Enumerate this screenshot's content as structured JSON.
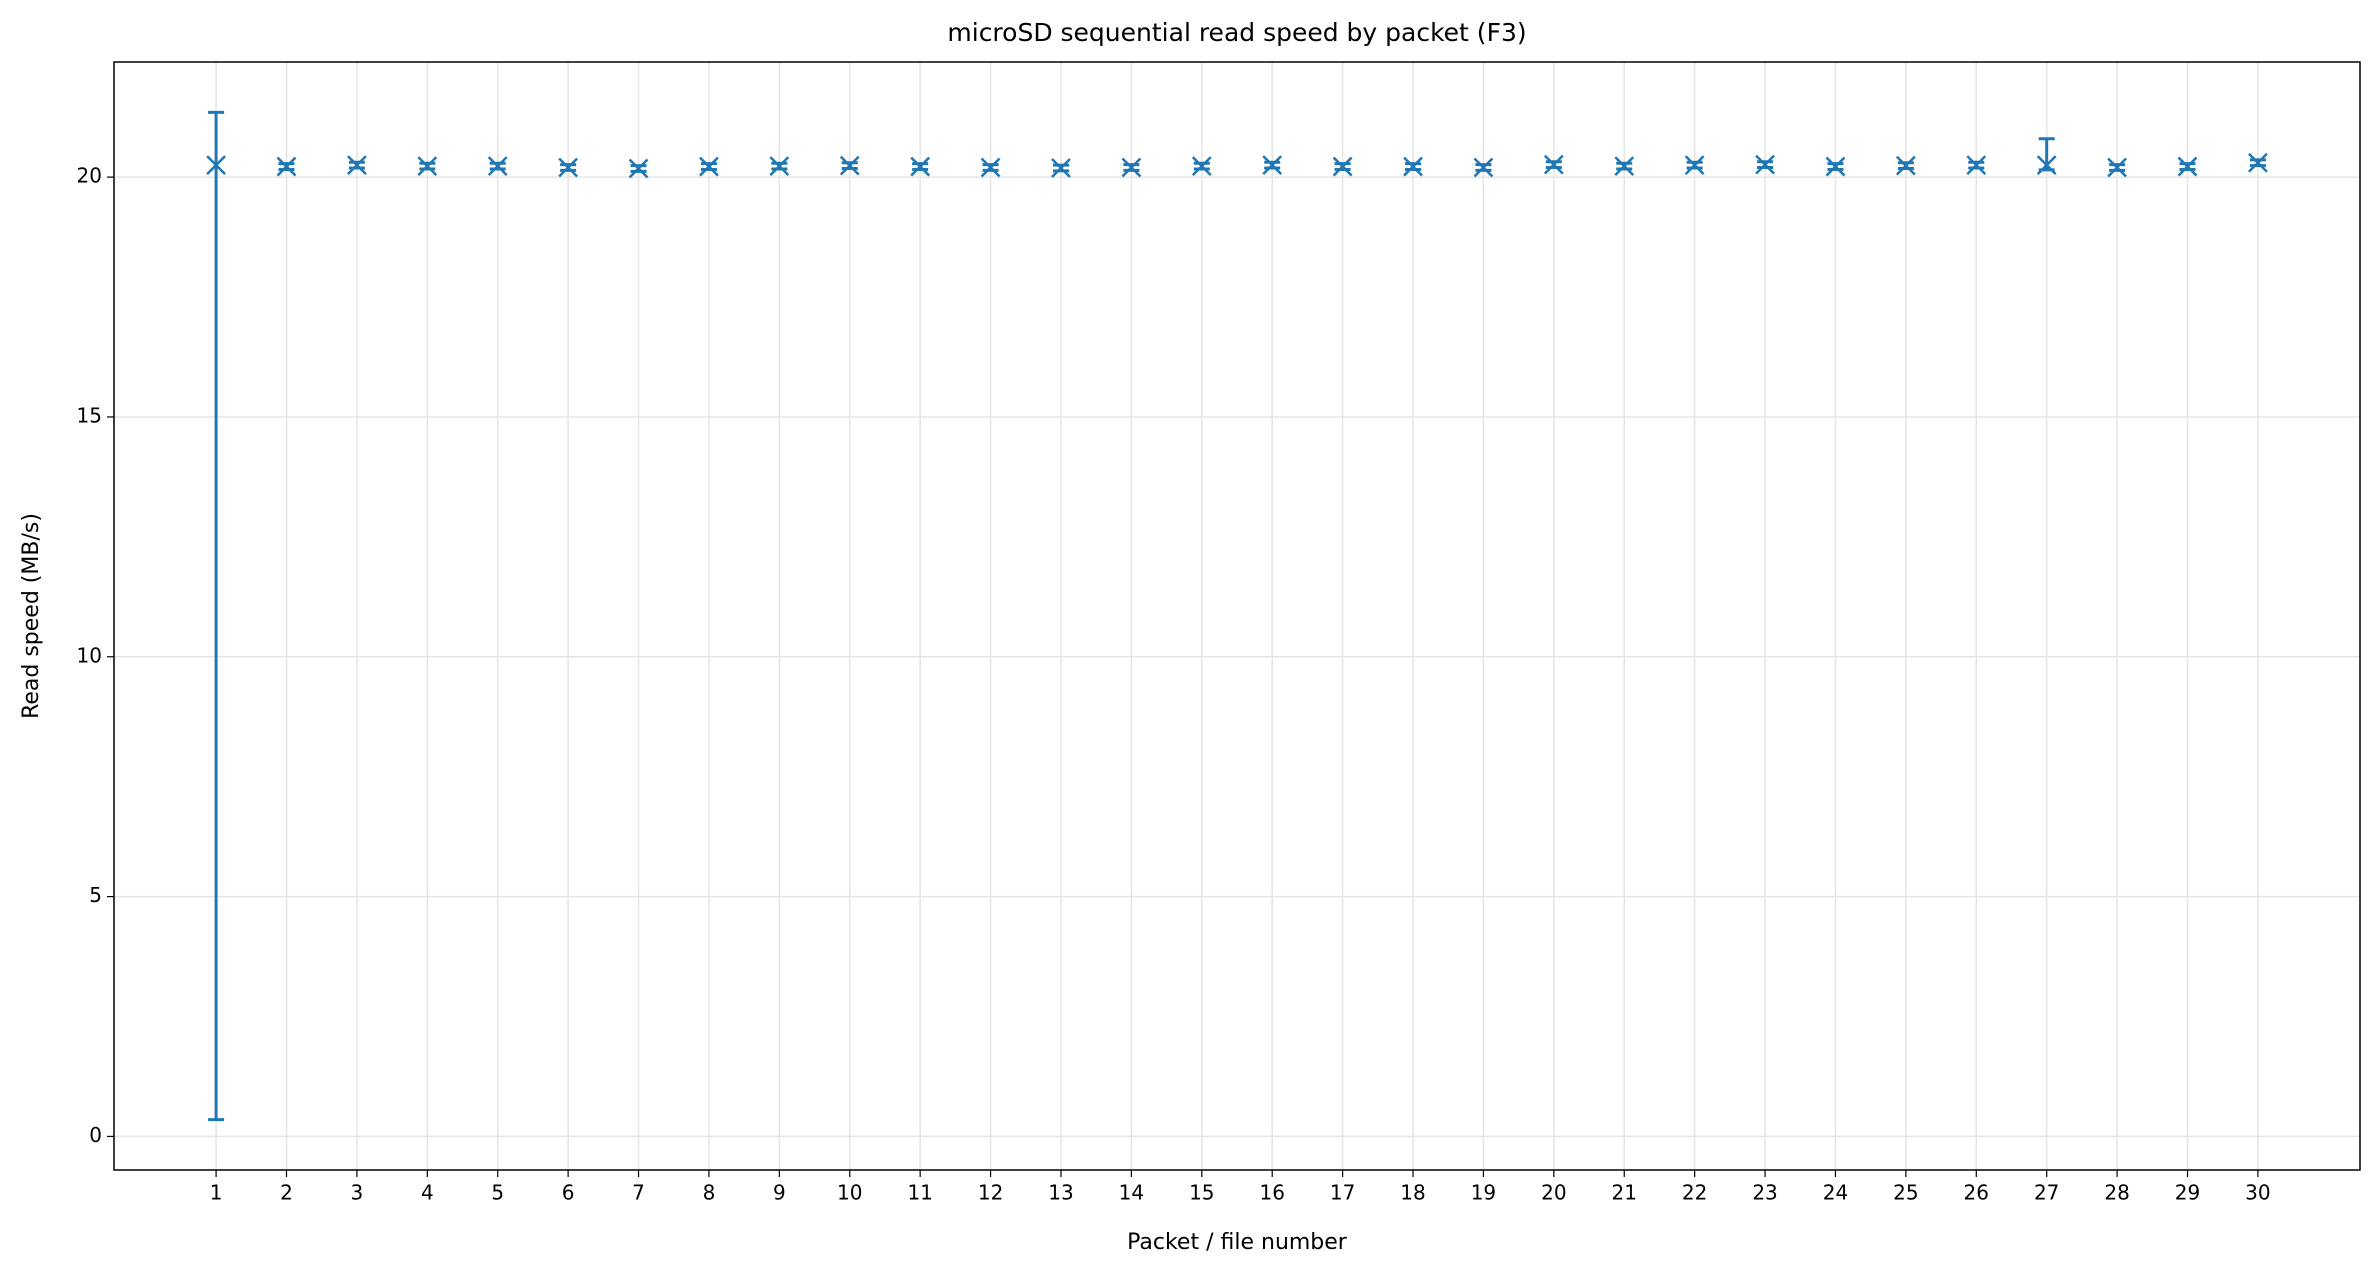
{
  "chart_data": {
    "type": "errorbar",
    "title": "microSD sequential read speed by packet (F3)",
    "x_label": "Packet / file number",
    "y_label": "Read speed (MB/s)",
    "x": [
      1,
      2,
      3,
      4,
      5,
      6,
      7,
      8,
      9,
      10,
      11,
      12,
      13,
      14,
      15,
      16,
      17,
      18,
      19,
      20,
      21,
      22,
      23,
      24,
      25,
      26,
      27,
      28,
      29,
      30
    ],
    "series": [
      {
        "color": "#1f77b4",
        "values": [
          20.25,
          20.22,
          20.25,
          20.23,
          20.23,
          20.2,
          20.18,
          20.22,
          20.23,
          20.24,
          20.22,
          20.2,
          20.19,
          20.2,
          20.23,
          20.25,
          20.22,
          20.22,
          20.2,
          20.26,
          20.23,
          20.25,
          20.26,
          20.22,
          20.24,
          20.25,
          20.25,
          20.2,
          20.22,
          20.3
        ],
        "yerr_minus": [
          19.9,
          0.06,
          0.06,
          0.06,
          0.06,
          0.06,
          0.06,
          0.06,
          0.06,
          0.06,
          0.06,
          0.06,
          0.06,
          0.06,
          0.06,
          0.06,
          0.06,
          0.06,
          0.06,
          0.06,
          0.06,
          0.06,
          0.06,
          0.06,
          0.06,
          0.06,
          0.1,
          0.06,
          0.06,
          0.06
        ],
        "yerr_plus": [
          1.1,
          0.06,
          0.06,
          0.06,
          0.06,
          0.06,
          0.06,
          0.06,
          0.06,
          0.06,
          0.06,
          0.06,
          0.06,
          0.06,
          0.06,
          0.06,
          0.06,
          0.06,
          0.06,
          0.06,
          0.06,
          0.06,
          0.06,
          0.06,
          0.06,
          0.06,
          0.55,
          0.06,
          0.06,
          0.06
        ]
      }
    ],
    "xlim": [
      -0.45,
      31.45
    ],
    "xticks": [
      1,
      2,
      3,
      4,
      5,
      6,
      7,
      8,
      9,
      10,
      11,
      12,
      13,
      14,
      15,
      16,
      17,
      18,
      19,
      20,
      21,
      22,
      23,
      24,
      25,
      26,
      27,
      28,
      29,
      30
    ],
    "ylim": [
      -0.7,
      22.4
    ],
    "yticks": [
      0,
      5,
      10,
      15,
      20
    ],
    "grid": true
  }
}
